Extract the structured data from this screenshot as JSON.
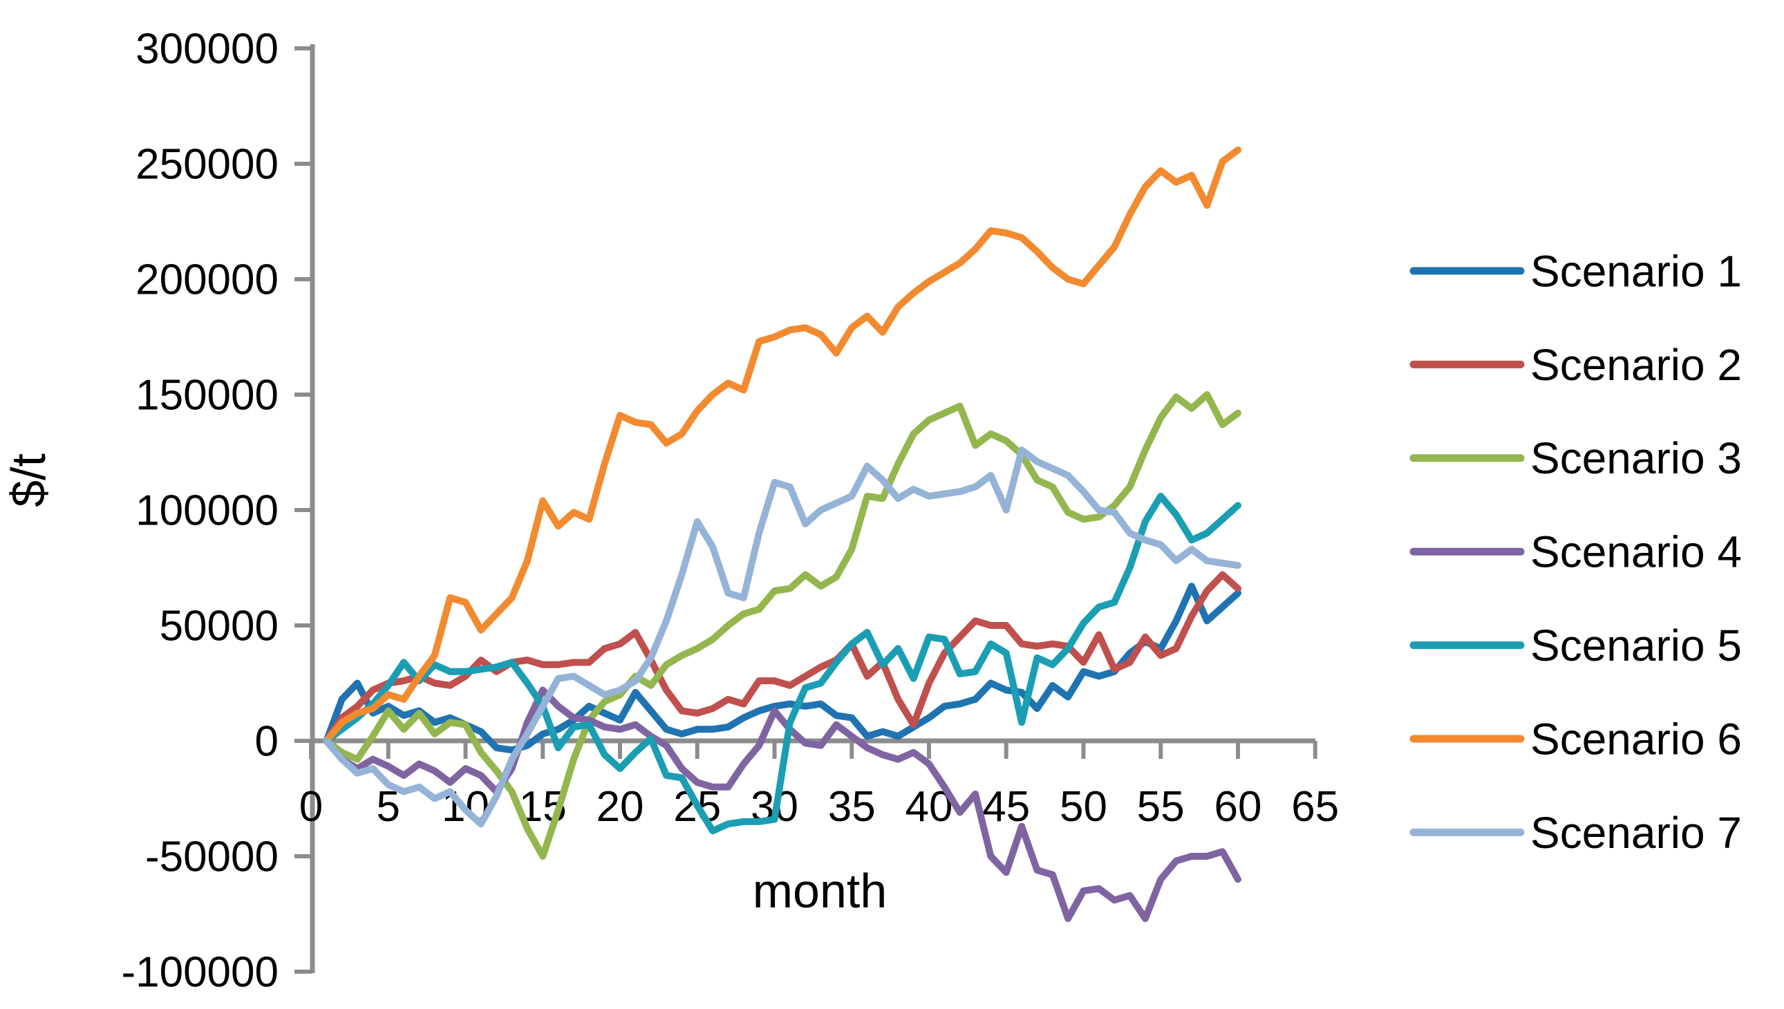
{
  "chart_data": {
    "type": "line",
    "title": "",
    "xlabel": "month",
    "ylabel": "$/t",
    "xlim": [
      0,
      65
    ],
    "ylim": [
      -100000,
      300000
    ],
    "grid": false,
    "legend_position": "right",
    "x_ticks": [
      0,
      5,
      10,
      15,
      20,
      25,
      30,
      35,
      40,
      45,
      50,
      55,
      60,
      65
    ],
    "y_ticks": [
      300000,
      250000,
      200000,
      150000,
      100000,
      50000,
      0,
      -50000,
      -100000
    ],
    "axis_color": "#8C8C8C",
    "x": [
      1,
      2,
      3,
      4,
      5,
      6,
      7,
      8,
      9,
      10,
      11,
      12,
      13,
      14,
      15,
      16,
      17,
      18,
      19,
      20,
      21,
      22,
      23,
      24,
      25,
      26,
      27,
      28,
      29,
      30,
      31,
      32,
      33,
      34,
      35,
      36,
      37,
      38,
      39,
      40,
      41,
      42,
      43,
      44,
      45,
      46,
      47,
      48,
      49,
      50,
      51,
      52,
      53,
      54,
      55,
      56,
      57,
      58,
      59,
      60
    ],
    "series": [
      {
        "name": "Scenario 1",
        "color": "#1F73B1",
        "values": [
          0,
          18000,
          25000,
          12000,
          15000,
          11000,
          13000,
          8000,
          10000,
          7000,
          4000,
          -3000,
          -4000,
          -2000,
          3000,
          5000,
          9000,
          15000,
          12000,
          9000,
          21000,
          13000,
          5000,
          3000,
          5000,
          5000,
          6000,
          10000,
          13000,
          15000,
          16000,
          15000,
          16000,
          11000,
          10000,
          2000,
          4000,
          2000,
          6000,
          10000,
          15000,
          16000,
          18000,
          25000,
          22000,
          21000,
          14000,
          24000,
          19000,
          30000,
          28000,
          30000,
          38000,
          43000,
          40000,
          52000,
          67000,
          52000,
          58000,
          64000
        ]
      },
      {
        "name": "Scenario 2",
        "color": "#C0504D",
        "values": [
          0,
          10000,
          15000,
          22000,
          25000,
          26000,
          28000,
          25000,
          24000,
          28000,
          35000,
          30000,
          34000,
          35000,
          33000,
          33000,
          34000,
          34000,
          40000,
          42000,
          47000,
          35000,
          22000,
          13000,
          12000,
          14000,
          18000,
          16000,
          26000,
          26000,
          24000,
          28000,
          32000,
          35000,
          42000,
          28000,
          34000,
          18000,
          7000,
          25000,
          38000,
          45000,
          52000,
          50000,
          50000,
          42000,
          41000,
          42000,
          41000,
          34000,
          46000,
          31000,
          34000,
          45000,
          37000,
          40000,
          54000,
          65000,
          72000,
          66000
        ]
      },
      {
        "name": "Scenario 3",
        "color": "#94B64E",
        "values": [
          0,
          -5000,
          -8000,
          2000,
          13000,
          5000,
          12000,
          3000,
          8000,
          7000,
          -5000,
          -13000,
          -22000,
          -38000,
          -50000,
          -30000,
          -8000,
          9000,
          17000,
          20000,
          28000,
          24000,
          33000,
          37000,
          40000,
          44000,
          50000,
          55000,
          57000,
          65000,
          66000,
          72000,
          67000,
          71000,
          83000,
          106000,
          105000,
          120000,
          133000,
          139000,
          142000,
          145000,
          128000,
          133000,
          130000,
          124000,
          113000,
          110000,
          99000,
          96000,
          97000,
          102000,
          110000,
          126000,
          140000,
          149000,
          144000,
          150000,
          137000,
          142000
        ]
      },
      {
        "name": "Scenario 4",
        "color": "#8064A2",
        "values": [
          0,
          -8000,
          -12000,
          -8000,
          -11000,
          -15000,
          -10000,
          -13000,
          -18000,
          -12000,
          -15000,
          -22000,
          -12000,
          8000,
          22000,
          15000,
          10000,
          9000,
          6000,
          5000,
          7000,
          2000,
          -2000,
          -12000,
          -18000,
          -20000,
          -20000,
          -10000,
          -2000,
          13000,
          5000,
          -1000,
          -2000,
          7000,
          2000,
          -3000,
          -6000,
          -8000,
          -5000,
          -10000,
          -20000,
          -31000,
          -23000,
          -50000,
          -57000,
          -37000,
          -56000,
          -58000,
          -77000,
          -65000,
          -64000,
          -69000,
          -67000,
          -77000,
          -60000,
          -52000,
          -50000,
          -50000,
          -48000,
          -60000
        ]
      },
      {
        "name": "Scenario 5",
        "color": "#1B9EB3",
        "values": [
          0,
          5000,
          10000,
          16000,
          24000,
          34000,
          26000,
          33000,
          30000,
          30000,
          31000,
          32000,
          34000,
          25000,
          15000,
          -3000,
          6000,
          7000,
          -6000,
          -12000,
          -5000,
          1000,
          -15000,
          -16000,
          -28000,
          -39000,
          -36000,
          -35000,
          -35000,
          -34000,
          8000,
          23000,
          25000,
          34000,
          42000,
          47000,
          33000,
          40000,
          27000,
          45000,
          44000,
          29000,
          30000,
          42000,
          38000,
          8000,
          36000,
          33000,
          40000,
          51000,
          58000,
          60000,
          75000,
          95000,
          106000,
          98000,
          87000,
          90000,
          96000,
          102000
        ]
      },
      {
        "name": "Scenario 6",
        "color": "#F28A30",
        "values": [
          0,
          8000,
          12000,
          14000,
          20000,
          18000,
          28000,
          37000,
          62000,
          60000,
          48000,
          55000,
          62000,
          78000,
          104000,
          93000,
          99000,
          96000,
          120000,
          141000,
          138000,
          137000,
          129000,
          133000,
          143000,
          150000,
          155000,
          152000,
          173000,
          175000,
          178000,
          179000,
          176000,
          168000,
          179000,
          184000,
          177000,
          188000,
          194000,
          199000,
          203000,
          207000,
          213000,
          221000,
          220000,
          218000,
          212000,
          205000,
          200000,
          198000,
          206000,
          214000,
          228000,
          240000,
          247000,
          242000,
          245000,
          232000,
          251000,
          256000
        ]
      },
      {
        "name": "Scenario 7",
        "color": "#95B3D7",
        "values": [
          0,
          -8000,
          -14000,
          -12000,
          -19000,
          -22000,
          -20000,
          -25000,
          -22000,
          -30000,
          -36000,
          -24000,
          -8000,
          3000,
          15000,
          27000,
          28000,
          24000,
          20000,
          22000,
          26000,
          36000,
          52000,
          72000,
          95000,
          84000,
          64000,
          62000,
          90000,
          112000,
          110000,
          94000,
          100000,
          103000,
          106000,
          119000,
          113000,
          105000,
          109000,
          106000,
          107000,
          108000,
          110000,
          115000,
          100000,
          126000,
          121000,
          118000,
          115000,
          108000,
          100000,
          99000,
          90000,
          87000,
          85000,
          78000,
          83000,
          78000,
          77000,
          76000
        ]
      }
    ]
  },
  "legend": {
    "items": [
      "Scenario 1",
      "Scenario 2",
      "Scenario 3",
      "Scenario 4",
      "Scenario 5",
      "Scenario 6",
      "Scenario 7"
    ]
  }
}
